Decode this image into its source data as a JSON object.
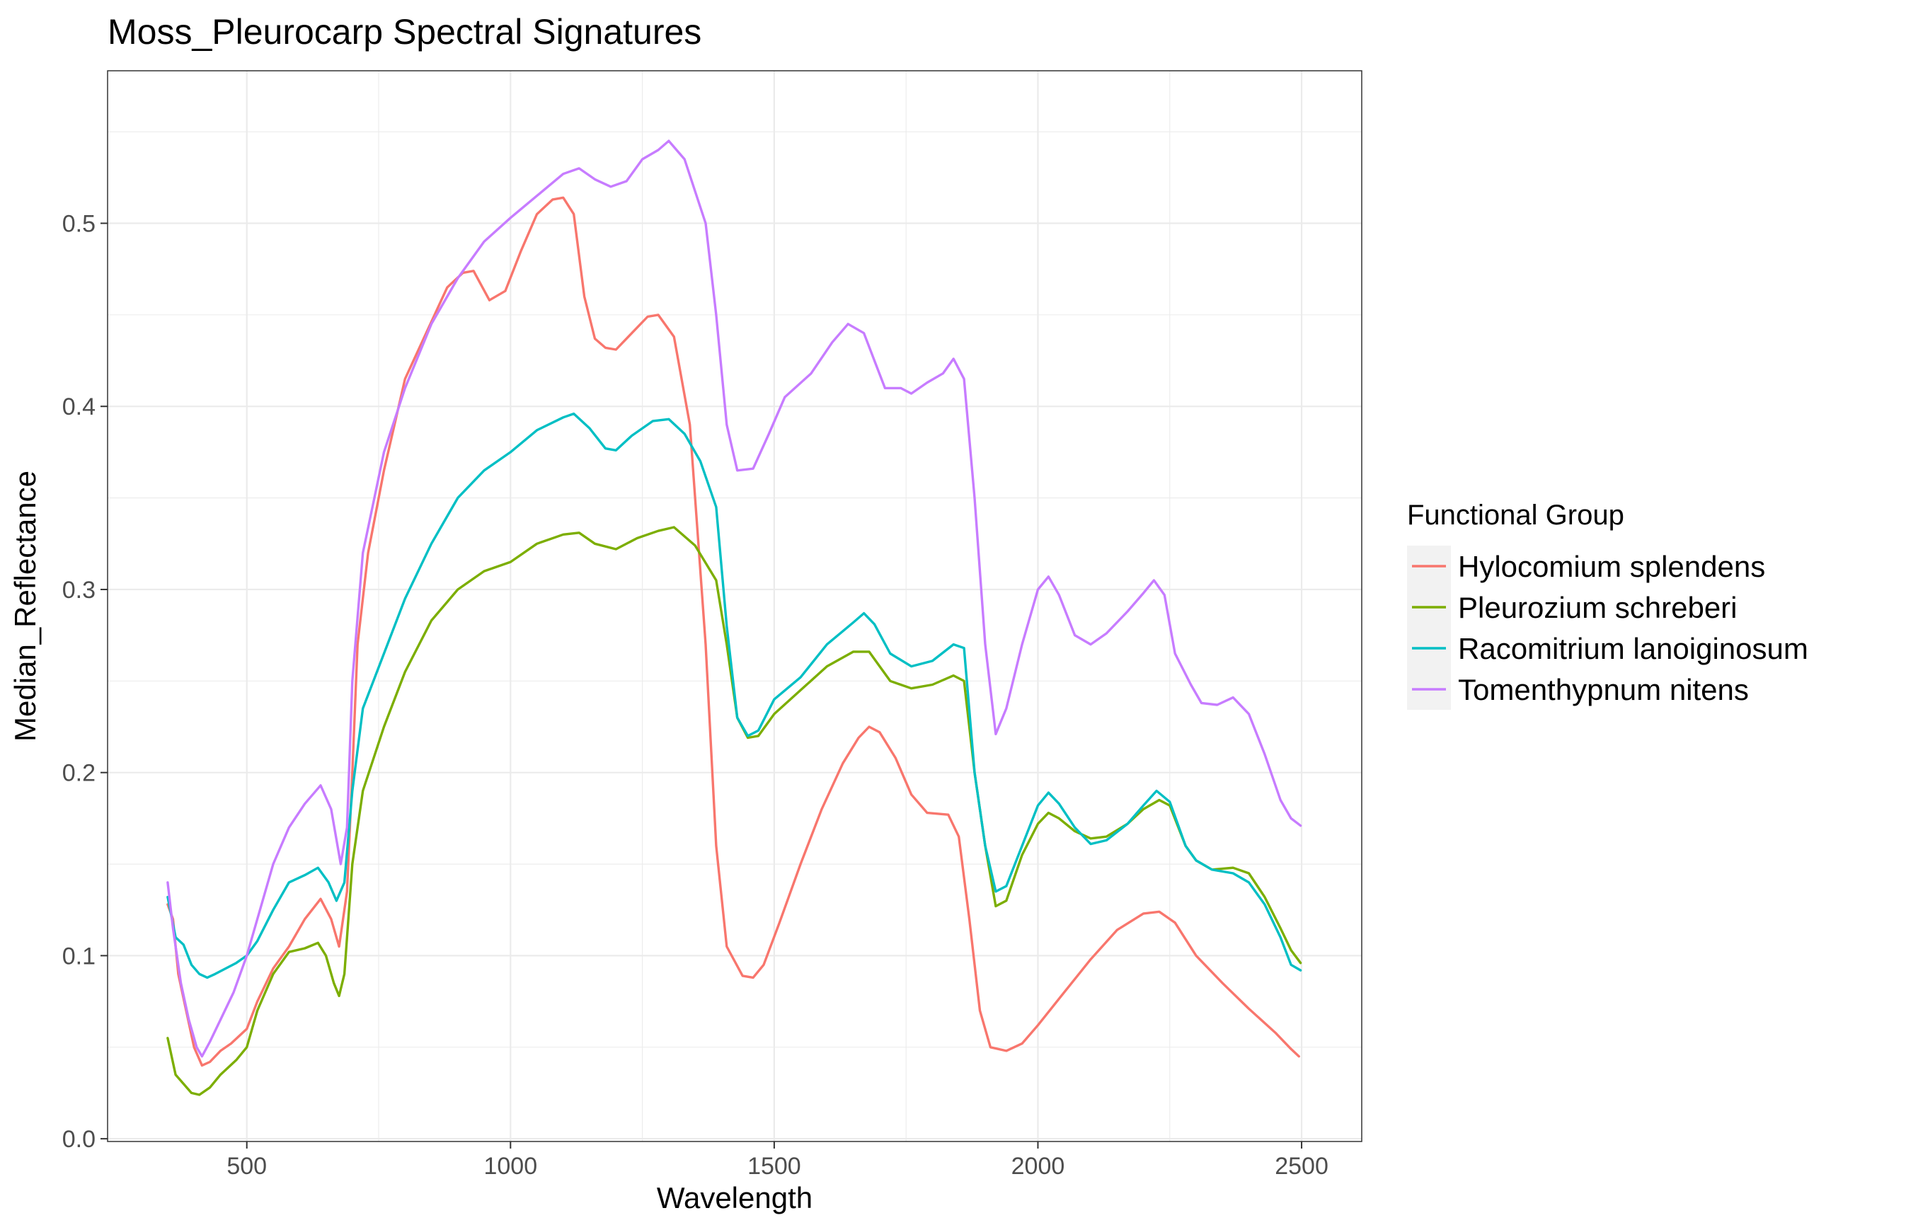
{
  "chart_data": {
    "type": "line",
    "title": "Moss_Pleurocarp Spectral Signatures",
    "xlabel": "Wavelength",
    "ylabel": "Median_Reflectance",
    "xlim": [
      236,
      2614
    ],
    "ylim": [
      -0.0015,
      0.5833
    ],
    "x_ticks": [
      500,
      1000,
      1500,
      2000,
      2500
    ],
    "x_tick_labels": [
      "500",
      "1000",
      "1500",
      "2000",
      "2500"
    ],
    "y_ticks": [
      0.0,
      0.1,
      0.2,
      0.3,
      0.4,
      0.5
    ],
    "y_tick_labels": [
      "0.0",
      "0.1",
      "0.2",
      "0.3",
      "0.4",
      "0.5"
    ],
    "grid": true,
    "legend": {
      "title": "Functional Group",
      "position": "right"
    },
    "series": [
      {
        "name": "Hylocomium splendens",
        "color": "#F8766D",
        "points": [
          [
            350,
            0.128
          ],
          [
            360,
            0.12
          ],
          [
            370,
            0.09
          ],
          [
            385,
            0.07
          ],
          [
            400,
            0.05
          ],
          [
            415,
            0.04
          ],
          [
            430,
            0.042
          ],
          [
            450,
            0.048
          ],
          [
            470,
            0.052
          ],
          [
            500,
            0.06
          ],
          [
            520,
            0.075
          ],
          [
            550,
            0.093
          ],
          [
            580,
            0.105
          ],
          [
            610,
            0.12
          ],
          [
            640,
            0.131
          ],
          [
            660,
            0.12
          ],
          [
            675,
            0.105
          ],
          [
            690,
            0.135
          ],
          [
            700,
            0.2
          ],
          [
            710,
            0.27
          ],
          [
            730,
            0.32
          ],
          [
            760,
            0.365
          ],
          [
            800,
            0.415
          ],
          [
            840,
            0.44
          ],
          [
            880,
            0.465
          ],
          [
            910,
            0.473
          ],
          [
            930,
            0.474
          ],
          [
            960,
            0.458
          ],
          [
            990,
            0.463
          ],
          [
            1020,
            0.485
          ],
          [
            1050,
            0.505
          ],
          [
            1080,
            0.513
          ],
          [
            1100,
            0.514
          ],
          [
            1120,
            0.505
          ],
          [
            1140,
            0.46
          ],
          [
            1160,
            0.437
          ],
          [
            1180,
            0.432
          ],
          [
            1200,
            0.431
          ],
          [
            1230,
            0.44
          ],
          [
            1260,
            0.449
          ],
          [
            1280,
            0.45
          ],
          [
            1310,
            0.438
          ],
          [
            1340,
            0.39
          ],
          [
            1370,
            0.27
          ],
          [
            1390,
            0.16
          ],
          [
            1410,
            0.105
          ],
          [
            1440,
            0.089
          ],
          [
            1460,
            0.088
          ],
          [
            1480,
            0.095
          ],
          [
            1510,
            0.118
          ],
          [
            1550,
            0.15
          ],
          [
            1590,
            0.18
          ],
          [
            1630,
            0.205
          ],
          [
            1660,
            0.219
          ],
          [
            1680,
            0.225
          ],
          [
            1700,
            0.222
          ],
          [
            1730,
            0.208
          ],
          [
            1760,
            0.188
          ],
          [
            1790,
            0.178
          ],
          [
            1830,
            0.177
          ],
          [
            1850,
            0.165
          ],
          [
            1870,
            0.12
          ],
          [
            1890,
            0.07
          ],
          [
            1910,
            0.05
          ],
          [
            1940,
            0.048
          ],
          [
            1970,
            0.052
          ],
          [
            2000,
            0.062
          ],
          [
            2050,
            0.08
          ],
          [
            2100,
            0.098
          ],
          [
            2150,
            0.114
          ],
          [
            2200,
            0.123
          ],
          [
            2230,
            0.124
          ],
          [
            2260,
            0.118
          ],
          [
            2300,
            0.1
          ],
          [
            2350,
            0.085
          ],
          [
            2400,
            0.071
          ],
          [
            2450,
            0.058
          ],
          [
            2480,
            0.049
          ],
          [
            2495,
            0.045
          ]
        ]
      },
      {
        "name": "Pleurozium schreberi",
        "color": "#7CAE00",
        "points": [
          [
            350,
            0.055
          ],
          [
            365,
            0.035
          ],
          [
            380,
            0.03
          ],
          [
            395,
            0.025
          ],
          [
            410,
            0.024
          ],
          [
            430,
            0.028
          ],
          [
            450,
            0.035
          ],
          [
            480,
            0.043
          ],
          [
            500,
            0.05
          ],
          [
            520,
            0.07
          ],
          [
            550,
            0.09
          ],
          [
            580,
            0.102
          ],
          [
            610,
            0.104
          ],
          [
            635,
            0.107
          ],
          [
            650,
            0.1
          ],
          [
            665,
            0.085
          ],
          [
            675,
            0.078
          ],
          [
            685,
            0.09
          ],
          [
            700,
            0.15
          ],
          [
            720,
            0.19
          ],
          [
            760,
            0.225
          ],
          [
            800,
            0.255
          ],
          [
            850,
            0.283
          ],
          [
            900,
            0.3
          ],
          [
            950,
            0.31
          ],
          [
            1000,
            0.315
          ],
          [
            1050,
            0.325
          ],
          [
            1100,
            0.33
          ],
          [
            1130,
            0.331
          ],
          [
            1160,
            0.325
          ],
          [
            1200,
            0.322
          ],
          [
            1240,
            0.328
          ],
          [
            1280,
            0.332
          ],
          [
            1310,
            0.334
          ],
          [
            1350,
            0.324
          ],
          [
            1390,
            0.305
          ],
          [
            1410,
            0.27
          ],
          [
            1430,
            0.23
          ],
          [
            1450,
            0.219
          ],
          [
            1470,
            0.22
          ],
          [
            1500,
            0.232
          ],
          [
            1550,
            0.245
          ],
          [
            1600,
            0.258
          ],
          [
            1650,
            0.266
          ],
          [
            1680,
            0.266
          ],
          [
            1700,
            0.258
          ],
          [
            1720,
            0.25
          ],
          [
            1760,
            0.246
          ],
          [
            1800,
            0.248
          ],
          [
            1840,
            0.253
          ],
          [
            1860,
            0.25
          ],
          [
            1880,
            0.2
          ],
          [
            1900,
            0.16
          ],
          [
            1920,
            0.127
          ],
          [
            1940,
            0.13
          ],
          [
            1970,
            0.155
          ],
          [
            2000,
            0.172
          ],
          [
            2020,
            0.178
          ],
          [
            2040,
            0.175
          ],
          [
            2070,
            0.168
          ],
          [
            2100,
            0.164
          ],
          [
            2130,
            0.165
          ],
          [
            2170,
            0.172
          ],
          [
            2200,
            0.18
          ],
          [
            2230,
            0.185
          ],
          [
            2250,
            0.182
          ],
          [
            2280,
            0.16
          ],
          [
            2300,
            0.152
          ],
          [
            2330,
            0.147
          ],
          [
            2370,
            0.148
          ],
          [
            2400,
            0.145
          ],
          [
            2430,
            0.132
          ],
          [
            2460,
            0.115
          ],
          [
            2480,
            0.103
          ],
          [
            2498,
            0.096
          ]
        ]
      },
      {
        "name": "Racomitrium lanoiginosum",
        "color": "#00BFC4",
        "points": [
          [
            350,
            0.132
          ],
          [
            365,
            0.11
          ],
          [
            380,
            0.106
          ],
          [
            395,
            0.095
          ],
          [
            410,
            0.09
          ],
          [
            425,
            0.088
          ],
          [
            440,
            0.09
          ],
          [
            460,
            0.093
          ],
          [
            480,
            0.096
          ],
          [
            500,
            0.1
          ],
          [
            520,
            0.108
          ],
          [
            550,
            0.125
          ],
          [
            580,
            0.14
          ],
          [
            610,
            0.144
          ],
          [
            635,
            0.148
          ],
          [
            655,
            0.14
          ],
          [
            670,
            0.13
          ],
          [
            685,
            0.14
          ],
          [
            700,
            0.19
          ],
          [
            720,
            0.235
          ],
          [
            760,
            0.265
          ],
          [
            800,
            0.295
          ],
          [
            850,
            0.325
          ],
          [
            900,
            0.35
          ],
          [
            950,
            0.365
          ],
          [
            1000,
            0.375
          ],
          [
            1050,
            0.387
          ],
          [
            1100,
            0.394
          ],
          [
            1120,
            0.396
          ],
          [
            1150,
            0.388
          ],
          [
            1180,
            0.377
          ],
          [
            1200,
            0.376
          ],
          [
            1230,
            0.384
          ],
          [
            1270,
            0.392
          ],
          [
            1300,
            0.393
          ],
          [
            1330,
            0.385
          ],
          [
            1360,
            0.37
          ],
          [
            1390,
            0.345
          ],
          [
            1410,
            0.28
          ],
          [
            1430,
            0.23
          ],
          [
            1450,
            0.22
          ],
          [
            1470,
            0.223
          ],
          [
            1500,
            0.24
          ],
          [
            1550,
            0.252
          ],
          [
            1600,
            0.27
          ],
          [
            1650,
            0.282
          ],
          [
            1670,
            0.287
          ],
          [
            1690,
            0.281
          ],
          [
            1720,
            0.265
          ],
          [
            1760,
            0.258
          ],
          [
            1800,
            0.261
          ],
          [
            1840,
            0.27
          ],
          [
            1860,
            0.268
          ],
          [
            1880,
            0.2
          ],
          [
            1900,
            0.16
          ],
          [
            1920,
            0.135
          ],
          [
            1940,
            0.138
          ],
          [
            1970,
            0.16
          ],
          [
            2000,
            0.182
          ],
          [
            2020,
            0.189
          ],
          [
            2040,
            0.183
          ],
          [
            2070,
            0.17
          ],
          [
            2100,
            0.161
          ],
          [
            2130,
            0.163
          ],
          [
            2170,
            0.172
          ],
          [
            2200,
            0.182
          ],
          [
            2225,
            0.19
          ],
          [
            2250,
            0.184
          ],
          [
            2280,
            0.16
          ],
          [
            2300,
            0.152
          ],
          [
            2330,
            0.147
          ],
          [
            2370,
            0.145
          ],
          [
            2400,
            0.14
          ],
          [
            2430,
            0.128
          ],
          [
            2460,
            0.11
          ],
          [
            2480,
            0.095
          ],
          [
            2498,
            0.092
          ]
        ]
      },
      {
        "name": "Tomenthypnum nitens",
        "color": "#C77CFF",
        "points": [
          [
            350,
            0.14
          ],
          [
            360,
            0.115
          ],
          [
            375,
            0.085
          ],
          [
            390,
            0.065
          ],
          [
            405,
            0.05
          ],
          [
            415,
            0.045
          ],
          [
            430,
            0.053
          ],
          [
            450,
            0.065
          ],
          [
            475,
            0.08
          ],
          [
            500,
            0.1
          ],
          [
            520,
            0.12
          ],
          [
            550,
            0.15
          ],
          [
            580,
            0.17
          ],
          [
            610,
            0.183
          ],
          [
            640,
            0.193
          ],
          [
            660,
            0.18
          ],
          [
            678,
            0.15
          ],
          [
            690,
            0.17
          ],
          [
            700,
            0.25
          ],
          [
            720,
            0.32
          ],
          [
            760,
            0.375
          ],
          [
            800,
            0.41
          ],
          [
            850,
            0.445
          ],
          [
            900,
            0.47
          ],
          [
            950,
            0.49
          ],
          [
            1000,
            0.503
          ],
          [
            1050,
            0.515
          ],
          [
            1100,
            0.527
          ],
          [
            1130,
            0.53
          ],
          [
            1160,
            0.524
          ],
          [
            1190,
            0.52
          ],
          [
            1220,
            0.523
          ],
          [
            1250,
            0.535
          ],
          [
            1280,
            0.54
          ],
          [
            1300,
            0.545
          ],
          [
            1330,
            0.535
          ],
          [
            1370,
            0.5
          ],
          [
            1390,
            0.45
          ],
          [
            1410,
            0.39
          ],
          [
            1430,
            0.365
          ],
          [
            1460,
            0.366
          ],
          [
            1490,
            0.385
          ],
          [
            1520,
            0.405
          ],
          [
            1570,
            0.418
          ],
          [
            1610,
            0.435
          ],
          [
            1640,
            0.445
          ],
          [
            1670,
            0.44
          ],
          [
            1690,
            0.425
          ],
          [
            1710,
            0.41
          ],
          [
            1740,
            0.41
          ],
          [
            1760,
            0.407
          ],
          [
            1790,
            0.413
          ],
          [
            1820,
            0.418
          ],
          [
            1840,
            0.426
          ],
          [
            1860,
            0.415
          ],
          [
            1880,
            0.35
          ],
          [
            1900,
            0.27
          ],
          [
            1920,
            0.221
          ],
          [
            1940,
            0.235
          ],
          [
            1970,
            0.27
          ],
          [
            2000,
            0.3
          ],
          [
            2020,
            0.307
          ],
          [
            2040,
            0.297
          ],
          [
            2070,
            0.275
          ],
          [
            2100,
            0.27
          ],
          [
            2130,
            0.276
          ],
          [
            2170,
            0.288
          ],
          [
            2200,
            0.298
          ],
          [
            2220,
            0.305
          ],
          [
            2240,
            0.297
          ],
          [
            2260,
            0.265
          ],
          [
            2290,
            0.248
          ],
          [
            2310,
            0.238
          ],
          [
            2340,
            0.237
          ],
          [
            2370,
            0.241
          ],
          [
            2400,
            0.232
          ],
          [
            2430,
            0.21
          ],
          [
            2460,
            0.185
          ],
          [
            2480,
            0.175
          ],
          [
            2498,
            0.171
          ]
        ]
      }
    ]
  }
}
